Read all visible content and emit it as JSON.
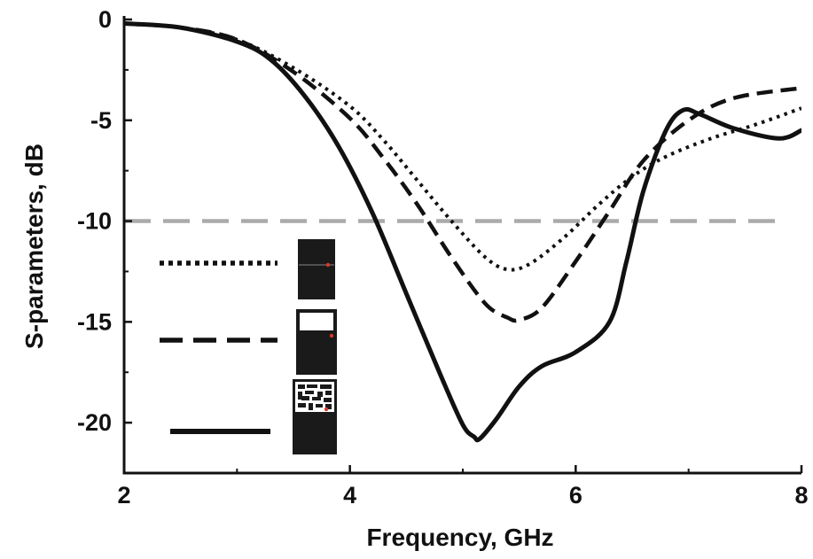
{
  "chart_data": {
    "type": "line",
    "title": "",
    "xlabel": "Frequency, GHz",
    "ylabel": "S-parameters, dB",
    "xlim": [
      2,
      8
    ],
    "ylim": [
      -22.5,
      0
    ],
    "xticks": [
      2,
      4,
      6,
      8
    ],
    "yticks": [
      0,
      -5,
      -10,
      -15,
      -20
    ],
    "xtick_labels": [
      "2",
      "4",
      "6",
      "8"
    ],
    "ytick_labels": [
      "0",
      "-5",
      "-10",
      "-15",
      "-20"
    ],
    "grid": false,
    "legend": "bottom-left, line styles with antenna-geometry insets",
    "reference_line": {
      "y": -10,
      "style": "dashed",
      "color": "#aaaaaa"
    },
    "series": [
      {
        "style": "dotted",
        "color": "#111111",
        "inset": "plain-patch",
        "x": [
          2.0,
          2.5,
          3.0,
          3.5,
          4.0,
          4.3,
          4.6,
          4.9,
          5.2,
          5.4,
          5.6,
          5.9,
          6.2,
          6.5,
          6.8,
          7.2,
          7.6,
          8.0
        ],
        "y": [
          -0.2,
          -0.4,
          -1.0,
          -2.4,
          -4.3,
          -6.0,
          -8.0,
          -10.0,
          -11.8,
          -12.4,
          -12.1,
          -10.8,
          -9.2,
          -7.8,
          -6.8,
          -5.9,
          -5.2,
          -4.4
        ]
      },
      {
        "style": "dashed",
        "color": "#111111",
        "inset": "slot-patch",
        "x": [
          2.0,
          2.5,
          3.0,
          3.5,
          4.0,
          4.3,
          4.6,
          4.9,
          5.2,
          5.4,
          5.5,
          5.7,
          6.0,
          6.3,
          6.6,
          7.0,
          7.4,
          8.0
        ],
        "y": [
          -0.2,
          -0.4,
          -1.0,
          -2.6,
          -4.9,
          -6.9,
          -9.2,
          -11.8,
          -14.1,
          -14.8,
          -14.9,
          -14.3,
          -12.0,
          -9.5,
          -7.0,
          -5.0,
          -3.9,
          -3.4
        ]
      },
      {
        "style": "solid",
        "color": "#111111",
        "inset": "fractal-patch",
        "x": [
          2.0,
          2.5,
          3.0,
          3.3,
          3.6,
          3.9,
          4.2,
          4.5,
          4.8,
          5.0,
          5.1,
          5.15,
          5.3,
          5.5,
          5.7,
          6.0,
          6.3,
          6.45,
          6.6,
          6.8,
          6.95,
          7.1,
          7.4,
          7.8,
          8.0
        ],
        "y": [
          -0.2,
          -0.4,
          -1.1,
          -2.0,
          -3.8,
          -6.3,
          -9.6,
          -13.6,
          -17.6,
          -20.1,
          -20.7,
          -20.8,
          -19.8,
          -18.2,
          -17.2,
          -16.5,
          -15.0,
          -12.0,
          -8.5,
          -5.5,
          -4.5,
          -4.7,
          -5.4,
          -5.9,
          -5.5
        ]
      }
    ]
  }
}
